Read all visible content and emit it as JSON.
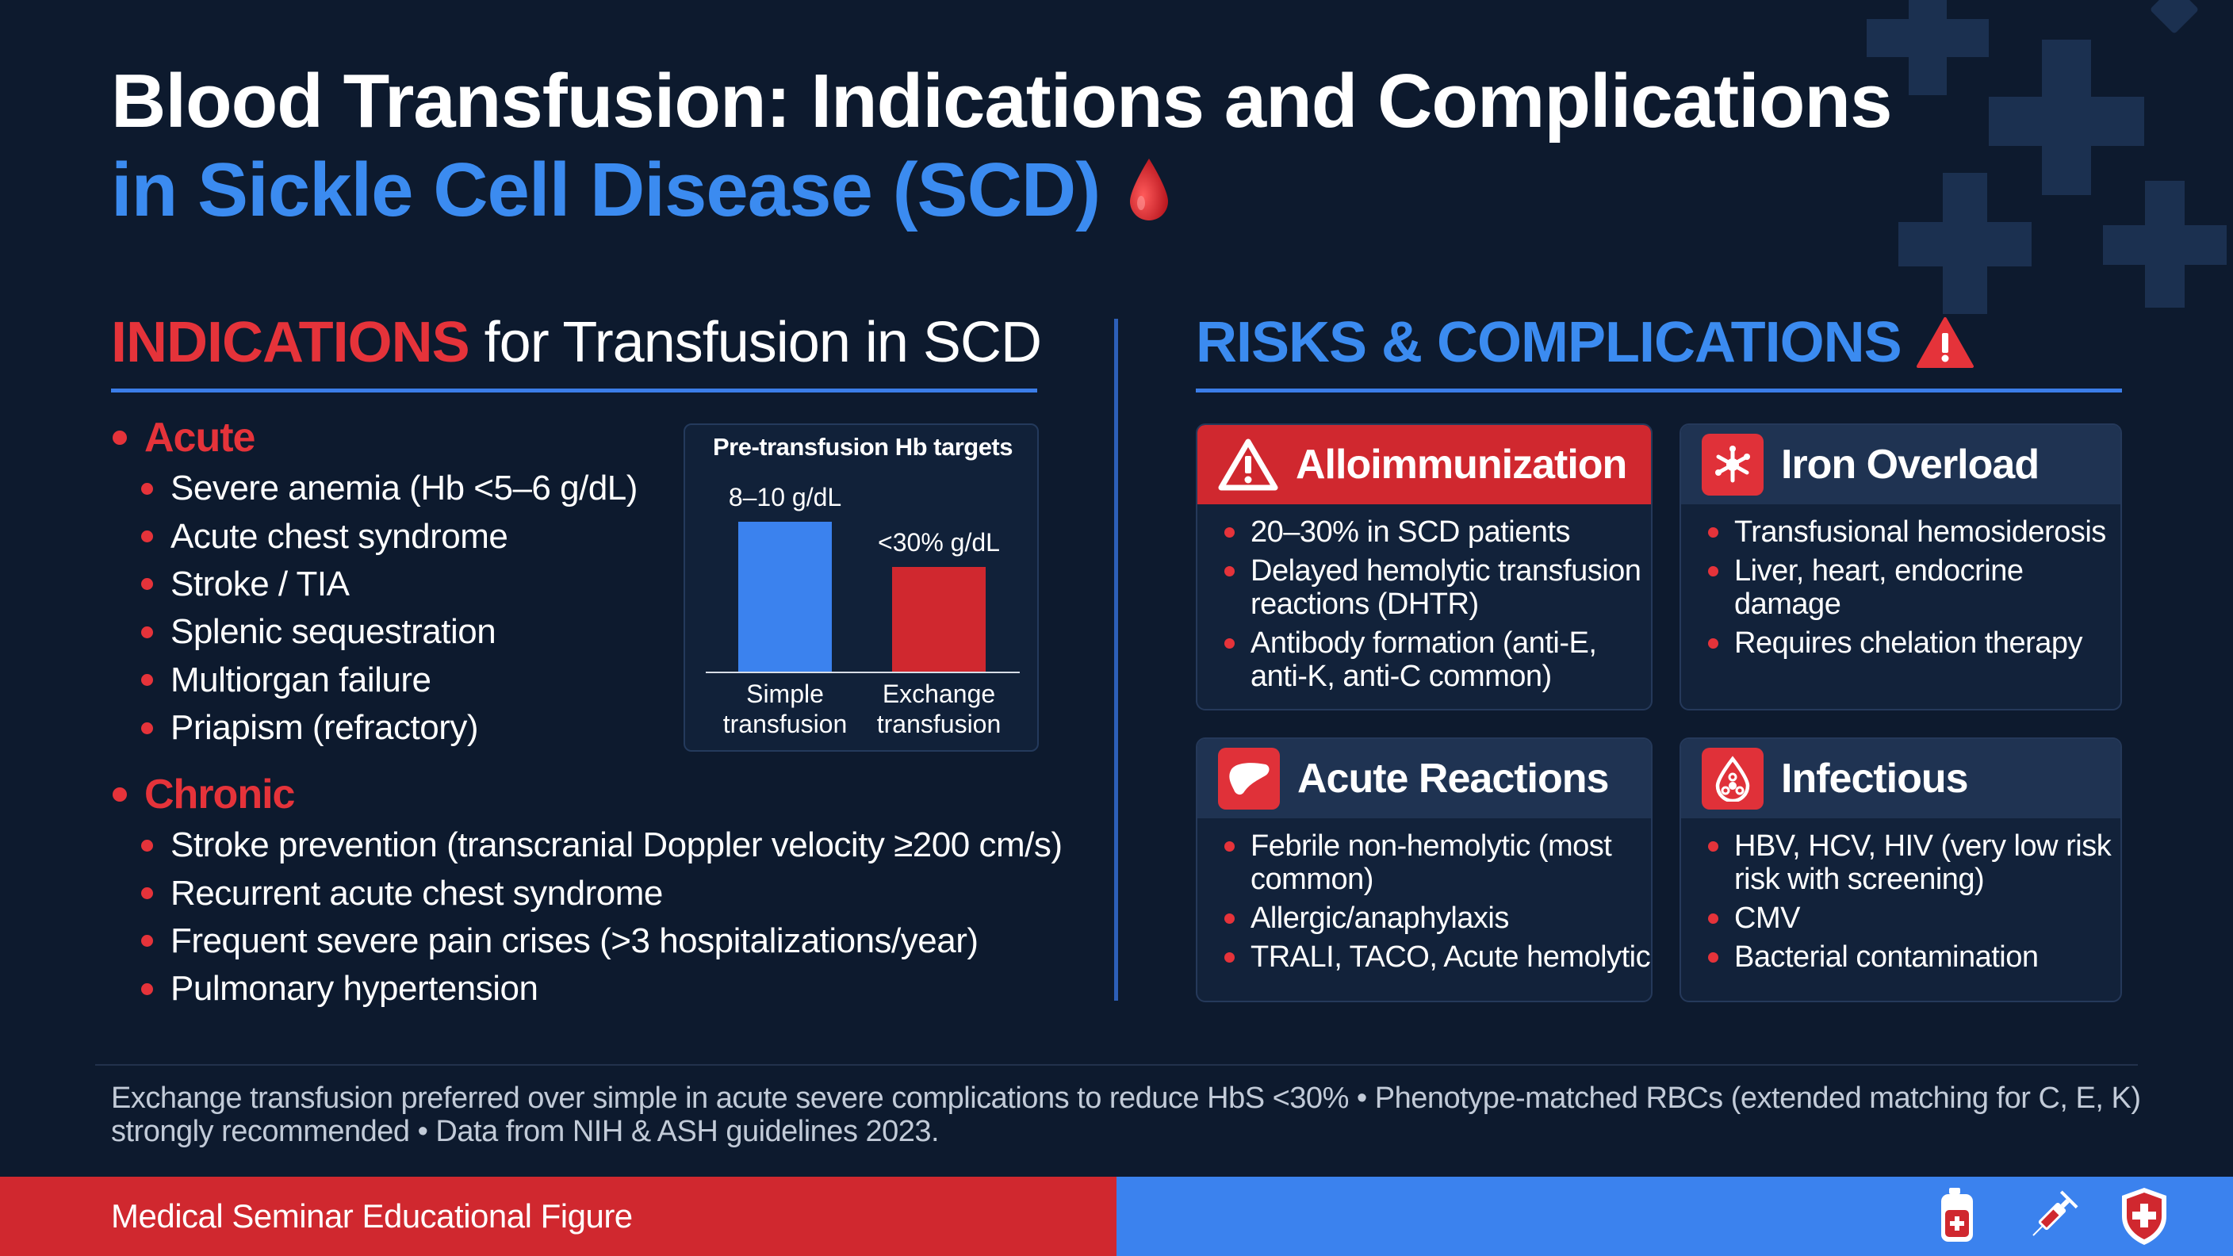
{
  "title": {
    "line1": "Blood Transfusion: Indications and Complications",
    "line2": "in Sickle Cell Disease (SCD)"
  },
  "indications": {
    "heading_accent": "INDICATIONS",
    "heading_rest": " for Transfusion in SCD",
    "acute_label": "Acute",
    "acute_items": [
      "Severe anemia (Hb <5–6 g/dL)",
      "Acute chest syndrome",
      "Stroke / TIA",
      "Splenic sequestration",
      "Multiorgan failure",
      "Priapism (refractory)"
    ],
    "chronic_label": "Chronic",
    "chronic_items": [
      "Stroke prevention (transcranial Doppler velocity ≥200 cm/s)",
      "Recurrent acute chest syndrome",
      "Frequent severe pain crises (>3 hospitalizations/year)",
      "Pulmonary hypertension"
    ]
  },
  "chart_data": {
    "type": "bar",
    "title": "Pre-transfusion Hb targets",
    "categories": [
      "Simple transfusion",
      "Exchange transfusion"
    ],
    "category_lines": [
      [
        "Simple",
        "transfusion"
      ],
      [
        "Exchange",
        "transfusion"
      ]
    ],
    "values": [
      10,
      7
    ],
    "data_labels": [
      "8–10 g/dL",
      "<30% g/dL"
    ],
    "colors": [
      "#3b82ee",
      "#d0282f"
    ],
    "xlabel": "",
    "ylabel": "",
    "ylim": [
      0,
      10
    ],
    "grid": false,
    "legend": "none"
  },
  "risks": {
    "heading": "RISKS & COMPLICATIONS",
    "cards": [
      {
        "title": "Alloimmunization",
        "icon": "warning-triangle-icon",
        "items": [
          "20–30% in SCD patients",
          "Delayed hemolytic transfusion reactions (DHTR)",
          "Antibody formation (anti-E, anti-K, anti-C common)"
        ]
      },
      {
        "title": "Iron Overload",
        "icon": "iron-atom-icon",
        "items": [
          "Transfusional hemosiderosis",
          "Liver, heart, endocrine damage",
          "Requires chelation therapy"
        ]
      },
      {
        "title": "Acute Reactions",
        "icon": "liver-icon",
        "items": [
          "Febrile non-hemolytic (most common)",
          "Allergic/anaphylaxis",
          "TRALI, TACO, Acute hemolytic"
        ]
      },
      {
        "title": "Infectious",
        "icon": "biohazard-drop-icon",
        "items": [
          "HBV, HCV, HIV (very low risk risk with screening)",
          "CMV",
          "Bacterial contamination"
        ]
      }
    ]
  },
  "footnote": "Exchange transfusion preferred over simple in acute severe complications to reduce HbS <30%  •  Phenotype-matched RBCs (extended matching for C, E, K) strongly recommended  •  Data from NIH & ASH guidelines 2023.",
  "footer": {
    "label": "Medical Seminar Educational Figure",
    "icons": [
      "blood-bag-icon",
      "syringe-icon",
      "medical-shield-icon"
    ]
  },
  "colors": {
    "background": "#0d1a2e",
    "accent_blue": "#3b8bf0",
    "accent_red": "#e5333a"
  }
}
